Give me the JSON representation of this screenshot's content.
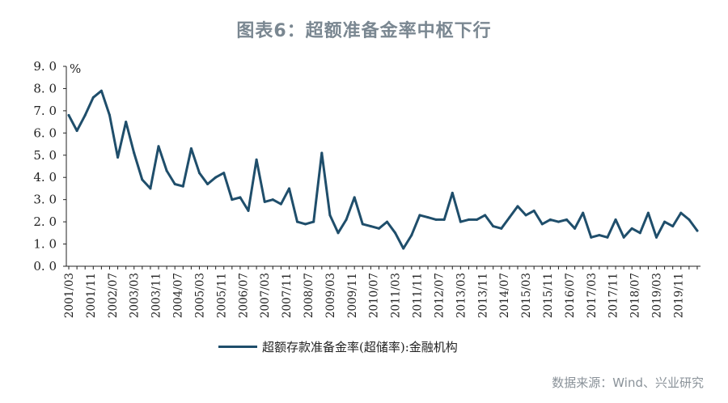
{
  "title": "图表6：超额准备金率中枢下行",
  "source": "数据来源：Wind、兴业研究",
  "chart_data": {
    "type": "line",
    "ylabel": "%",
    "ylim": [
      0,
      9
    ],
    "yticks": [
      "0.0",
      "1.0",
      "2.0",
      "3.0",
      "4.0",
      "5.0",
      "6.0",
      "7.0",
      "8.0",
      "9.0"
    ],
    "x_tick_labels": [
      "2001/03",
      "2001/11",
      "2002/07",
      "2003/03",
      "2003/11",
      "2004/07",
      "2005/03",
      "2005/11",
      "2006/07",
      "2007/03",
      "2007/11",
      "2008/07",
      "2009/03",
      "2009/11",
      "2010/07",
      "2011/03",
      "2011/11",
      "2012/07",
      "2013/03",
      "2013/11",
      "2014/07",
      "2015/03",
      "2015/11",
      "2016/07",
      "2017/03",
      "2017/11",
      "2018/07",
      "2019/03",
      "2019/11"
    ],
    "x_start": "2001/03",
    "x_step_months": 3,
    "color": "#1f4e6b",
    "legend_position": "bottom",
    "series": [
      {
        "name": "超额存款准备金率(超储率):金融机构",
        "values": [
          6.8,
          6.1,
          6.8,
          7.6,
          7.9,
          6.8,
          4.9,
          6.5,
          5.1,
          3.9,
          3.5,
          5.4,
          4.3,
          3.7,
          3.6,
          5.3,
          4.2,
          3.7,
          4.0,
          4.2,
          3.0,
          3.1,
          2.5,
          4.8,
          2.9,
          3.0,
          2.8,
          3.5,
          2.0,
          1.9,
          2.0,
          5.1,
          2.3,
          1.5,
          2.1,
          3.1,
          1.9,
          1.8,
          1.7,
          2.0,
          1.5,
          0.8,
          1.4,
          2.3,
          2.2,
          2.1,
          2.1,
          3.3,
          2.0,
          2.1,
          2.1,
          2.3,
          1.8,
          1.7,
          2.2,
          2.7,
          2.3,
          2.5,
          1.9,
          2.1,
          2.0,
          2.1,
          1.7,
          2.4,
          1.3,
          1.4,
          1.3,
          2.1,
          1.3,
          1.7,
          1.5,
          2.4,
          1.3,
          2.0,
          1.8,
          2.4,
          2.1,
          1.6
        ]
      }
    ]
  }
}
